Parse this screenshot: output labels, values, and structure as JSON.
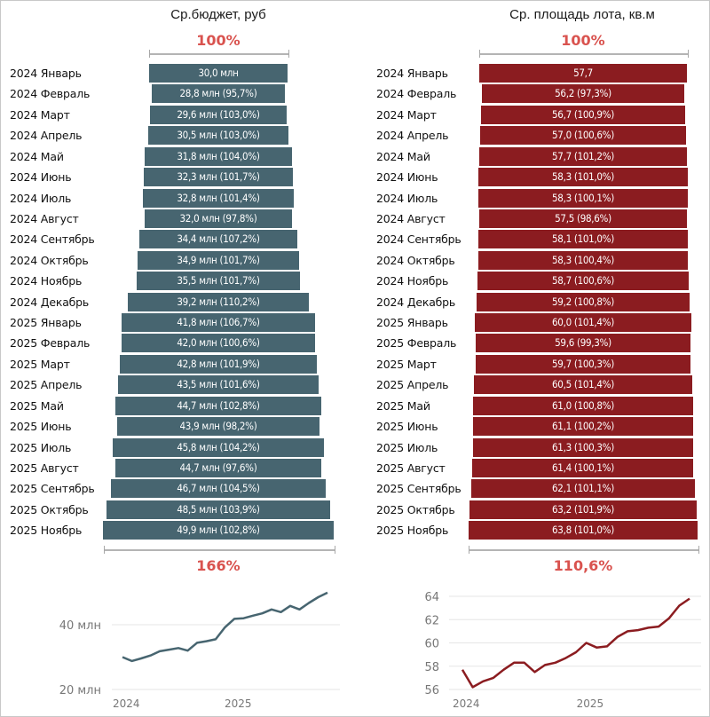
{
  "chart_data": [
    {
      "type": "bar",
      "title": "Ср.бюджет, руб",
      "top_label": "100%",
      "bottom_label": "166%",
      "categories": [
        "2024 Январь",
        "2024 Февраль",
        "2024 Март",
        "2024 Апрель",
        "2024 Май",
        "2024 Июнь",
        "2024 Июль",
        "2024 Август",
        "2024 Сентябрь",
        "2024 Октябрь",
        "2024 Ноябрь",
        "2024 Декабрь",
        "2025 Январь",
        "2025 Февраль",
        "2025 Март",
        "2025 Апрель",
        "2025 Май",
        "2025 Июнь",
        "2025 Июль",
        "2025 Август",
        "2025 Сентябрь",
        "2025 Октябрь",
        "2025 Ноябрь"
      ],
      "values": [
        30.0,
        28.8,
        29.6,
        30.5,
        31.8,
        32.3,
        32.8,
        32.0,
        34.4,
        34.9,
        35.5,
        39.2,
        41.8,
        42.0,
        42.8,
        43.5,
        44.7,
        43.9,
        45.8,
        44.7,
        46.7,
        48.5,
        49.9
      ],
      "bar_labels": [
        "30,0 млн",
        "28,8 млн (95,7%)",
        "29,6 млн (103,0%)",
        "30,5 млн (103,0%)",
        "31,8 млн (104,0%)",
        "32,3 млн (101,7%)",
        "32,8 млн (101,4%)",
        "32,0 млн (97,8%)",
        "34,4 млн (107,2%)",
        "34,9 млн (101,7%)",
        "35,5 млн (101,7%)",
        "39,2 млн (110,2%)",
        "41,8 млн (106,7%)",
        "42,0 млн (100,6%)",
        "42,8 млн (101,9%)",
        "43,5 млн (101,6%)",
        "44,7 млн (102,8%)",
        "43,9 млн (98,2%)",
        "45,8 млн (104,2%)",
        "44,7 млн (97,6%)",
        "46,7 млн (104,5%)",
        "48,5 млн (103,9%)",
        "49,9 млн (102,8%)"
      ],
      "unit": "млн руб",
      "color": "#476570"
    },
    {
      "type": "bar",
      "title": "Ср. площадь лота, кв.м",
      "top_label": "100%",
      "bottom_label": "110,6%",
      "categories": [
        "2024 Январь",
        "2024 Февраль",
        "2024 Март",
        "2024 Апрель",
        "2024 Май",
        "2024 Июнь",
        "2024 Июль",
        "2024 Август",
        "2024 Сентябрь",
        "2024 Октябрь",
        "2024 Ноябрь",
        "2024 Декабрь",
        "2025 Январь",
        "2025 Февраль",
        "2025 Март",
        "2025 Апрель",
        "2025 Май",
        "2025 Июнь",
        "2025 Июль",
        "2025 Август",
        "2025 Сентябрь",
        "2025 Октябрь",
        "2025 Ноябрь"
      ],
      "values": [
        57.7,
        56.2,
        56.7,
        57.0,
        57.7,
        58.3,
        58.3,
        57.5,
        58.1,
        58.3,
        58.7,
        59.2,
        60.0,
        59.6,
        59.7,
        60.5,
        61.0,
        61.1,
        61.3,
        61.4,
        62.1,
        63.2,
        63.8
      ],
      "bar_labels": [
        "57,7",
        "56,2 (97,3%)",
        "56,7 (100,9%)",
        "57,0 (100,6%)",
        "57,7 (101,2%)",
        "58,3 (101,0%)",
        "58,3 (100,1%)",
        "57,5 (98,6%)",
        "58,1 (101,0%)",
        "58,3 (100,4%)",
        "58,7 (100,6%)",
        "59,2 (100,8%)",
        "60,0 (101,4%)",
        "59,6 (99,3%)",
        "59,7 (100,3%)",
        "60,5 (101,4%)",
        "61,0 (100,8%)",
        "61,1 (100,2%)",
        "61,3 (100,3%)",
        "61,4 (100,1%)",
        "62,1 (101,1%)",
        "63,2 (101,9%)",
        "63,8 (101,0%)"
      ],
      "unit": "кв.м",
      "color": "#8b1c20"
    },
    {
      "type": "line",
      "title": "",
      "series": [
        {
          "name": "Ср.бюджет",
          "values": [
            30.0,
            28.8,
            29.6,
            30.5,
            31.8,
            32.3,
            32.8,
            32.0,
            34.4,
            34.9,
            35.5,
            39.2,
            41.8,
            42.0,
            42.8,
            43.5,
            44.7,
            43.9,
            45.8,
            44.7,
            46.7,
            48.5,
            49.9
          ]
        }
      ],
      "y_ticks": [
        20,
        40
      ],
      "y_tick_labels": [
        "20 млн",
        "40 млн"
      ],
      "x_tick_labels": [
        "2024",
        "2025"
      ],
      "x_tick_index": [
        0,
        12
      ],
      "ylim": [
        20,
        52
      ],
      "grid": true,
      "color": "#476570"
    },
    {
      "type": "line",
      "title": "",
      "series": [
        {
          "name": "Ср. площадь лота",
          "values": [
            57.7,
            56.2,
            56.7,
            57.0,
            57.7,
            58.3,
            58.3,
            57.5,
            58.1,
            58.3,
            58.7,
            59.2,
            60.0,
            59.6,
            59.7,
            60.5,
            61.0,
            61.1,
            61.3,
            61.4,
            62.1,
            63.2,
            63.8
          ]
        }
      ],
      "y_ticks": [
        56,
        58,
        60,
        62,
        64
      ],
      "y_tick_labels": [
        "56",
        "58",
        "60",
        "62",
        "64"
      ],
      "x_tick_labels": [
        "2024",
        "2025"
      ],
      "x_tick_index": [
        0,
        12
      ],
      "ylim": [
        56,
        64
      ],
      "grid": true,
      "color": "#8b1c20"
    }
  ],
  "panels": {
    "left": {
      "title": "Ср.бюджет, руб",
      "top_pct": "100%",
      "bottom_pct": "166%"
    },
    "right": {
      "title": "Ср. площадь лота, кв.м",
      "top_pct": "100%",
      "bottom_pct": "110,6%"
    }
  }
}
